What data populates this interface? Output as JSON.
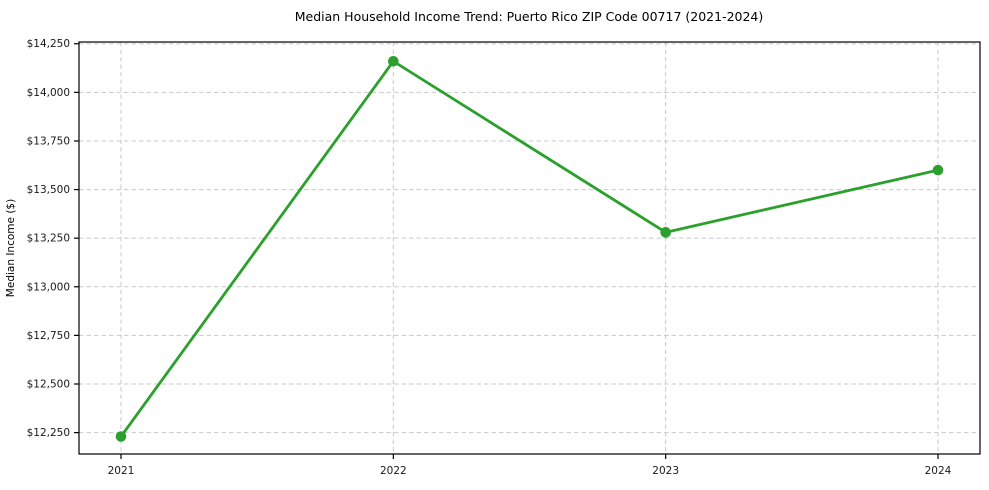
{
  "chart_data": {
    "type": "line",
    "title": "Median Household Income Trend: Puerto Rico ZIP Code 00717 (2021-2024)",
    "xlabel": "",
    "ylabel": "Median Income ($)",
    "categories": [
      "2021",
      "2022",
      "2023",
      "2024"
    ],
    "values": [
      12230,
      14160,
      13280,
      13600
    ],
    "y_ticks": [
      12250,
      12500,
      12750,
      13000,
      13250,
      13500,
      13750,
      14000,
      14250
    ],
    "y_tick_labels": [
      "$12,250",
      "$12,500",
      "$12,750",
      "$13,000",
      "$13,250",
      "$13,500",
      "$13,750",
      "$14,000",
      "$14,250"
    ],
    "ylim": [
      12140,
      14259
    ],
    "grid": true,
    "grid_style": "dashed",
    "grid_color": "#c9c9c9",
    "line_color": "#2ca02c",
    "marker": "circle",
    "legend": null,
    "background": "#ffffff"
  }
}
